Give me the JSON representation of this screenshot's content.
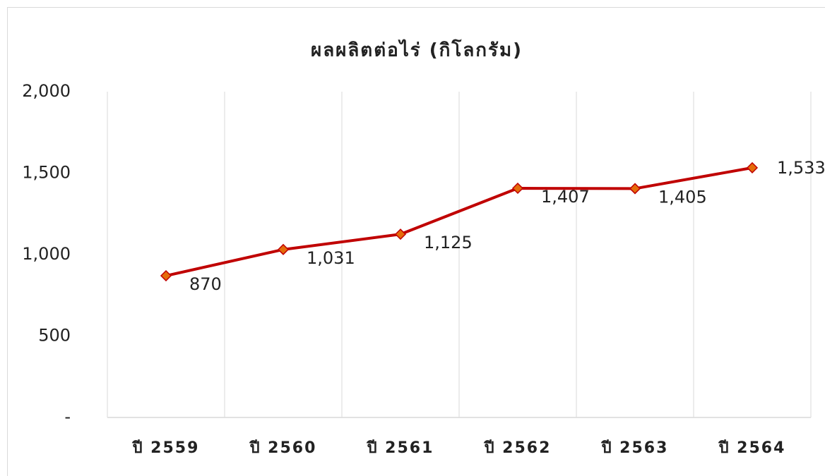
{
  "chart_data": {
    "type": "line",
    "title": "ผลผลิตต่อไร่ (กิโลกรัม)",
    "categories": [
      "ปี 2559",
      "ปี 2560",
      "ปี 2561",
      "ปี 2562",
      "ปี 2563",
      "ปี 2564"
    ],
    "series": [
      {
        "name": "ผลผลิตต่อไร่",
        "color": "#c00000",
        "marker_color": "#e46c0a",
        "values": [
          870,
          1031,
          1125,
          1407,
          1405,
          1533
        ],
        "value_labels": [
          "870",
          "1,031",
          "1,125",
          "1,407",
          "1,405",
          "1,533"
        ]
      }
    ],
    "ylim": [
      0,
      2000
    ],
    "yticks": [
      {
        "value": 0,
        "label": "-"
      },
      500,
      {
        "value": 1000,
        "label": "1,000"
      },
      {
        "value": 1500,
        "label": "1,500"
      },
      {
        "value": 2000,
        "label": "2,000"
      }
    ],
    "grid": true
  }
}
